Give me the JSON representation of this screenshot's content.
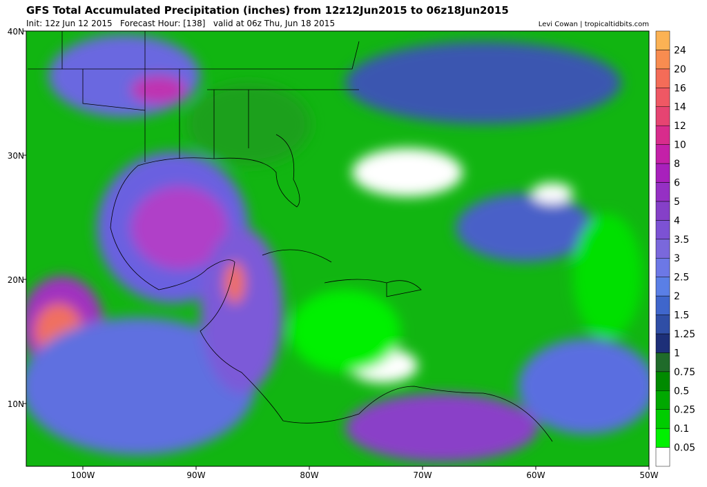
{
  "header": {
    "title": "GFS Total Accumulated Precipitation (inches) from 12z12Jun2015 to 06z18Jun2015",
    "subtitle": "Init: 12z Jun 12 2015   Forecast Hour: [138]   valid at 06z Thu, Jun 18 2015",
    "credit": "Levi Cowan | tropicaltidbits.com"
  },
  "map": {
    "lat_labels": [
      "40N",
      "30N",
      "20N",
      "10N"
    ],
    "lon_labels": [
      "100W",
      "90W",
      "80W",
      "70W",
      "60W",
      "50W"
    ]
  },
  "colorbar": {
    "levels": [
      0.05,
      0.1,
      0.25,
      0.5,
      0.75,
      1,
      1.25,
      1.5,
      2,
      2.5,
      3,
      3.5,
      4,
      5,
      6,
      8,
      10,
      12,
      14,
      16,
      20,
      24
    ],
    "colors": [
      "#ffffff",
      "#00f000",
      "#00cc00",
      "#00a800",
      "#008a00",
      "#1f6b2a",
      "#1d2f78",
      "#2f4ea6",
      "#3f66cc",
      "#5a7fe6",
      "#6c78e6",
      "#7a68dc",
      "#7c52d4",
      "#8540c8",
      "#9530c4",
      "#a820bc",
      "#c420a8",
      "#d82c8c",
      "#e64472",
      "#ef5864",
      "#f46c58",
      "#f88c50",
      "#fbb254"
    ]
  }
}
